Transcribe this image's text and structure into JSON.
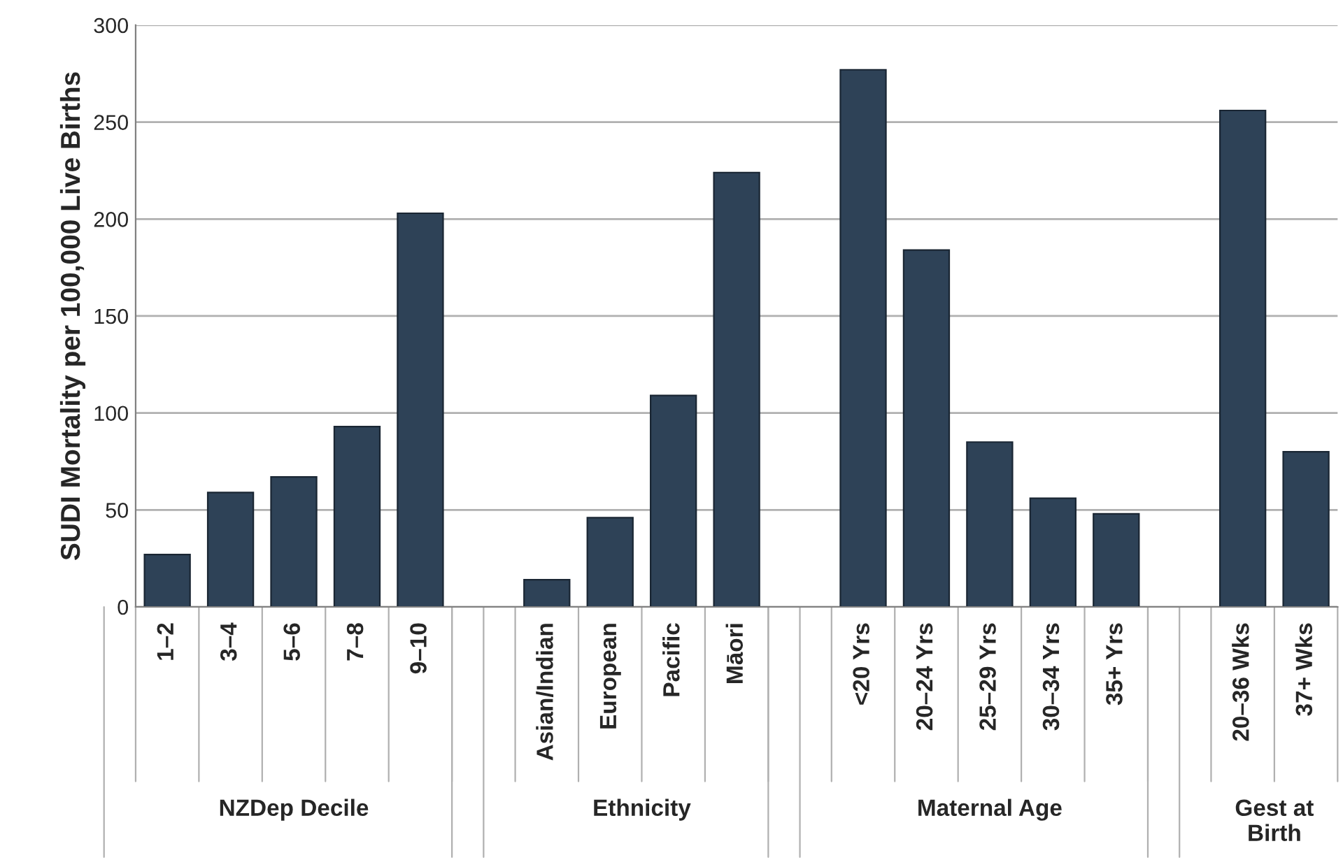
{
  "chart_data": {
    "type": "bar",
    "ylabel": "SUDI Mortality per 100,000 Live Births",
    "categories": [
      "1–2",
      "3–4",
      "5–6",
      "7–8",
      "9–10",
      null,
      "Asian/Indian",
      "European",
      "Pacific",
      "Māori",
      null,
      "<20 Yrs",
      "20–24 Yrs",
      "25–29 Yrs",
      "30–34 Yrs",
      "35+ Yrs",
      null,
      "20–36 Wks",
      "37+ Wks"
    ],
    "values": [
      27,
      59,
      67,
      93,
      203,
      null,
      14,
      46,
      109,
      224,
      null,
      277,
      184,
      85,
      56,
      48,
      null,
      256,
      80
    ],
    "color": "#2e4257",
    "annotations": [
      "NZDep Decile",
      "Ethnicity",
      "Maternal Age",
      "Gest at Birth"
    ],
    "ylim": [
      0,
      300
    ],
    "yticks": [
      0,
      50,
      100,
      150,
      200,
      250,
      300
    ],
    "grid": "y",
    "legend": false
  }
}
